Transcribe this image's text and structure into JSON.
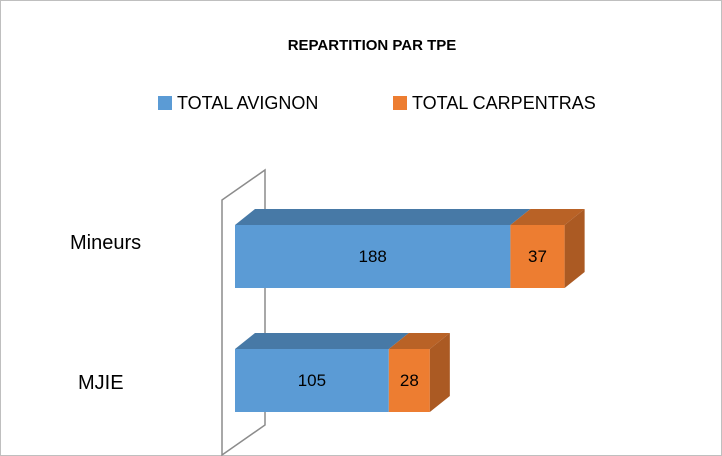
{
  "chart_data": {
    "type": "bar3d_stacked_horizontal",
    "title": "REPARTITION PAR TPE",
    "categories": [
      "Mineurs",
      "MJIE"
    ],
    "series": [
      {
        "name": "TOTAL AVIGNON",
        "color": "#5b9bd5",
        "values": [
          188,
          105
        ]
      },
      {
        "name": "TOTAL CARPENTRAS",
        "color": "#ed7d31",
        "values": [
          37,
          28
        ]
      }
    ],
    "legend": "top"
  }
}
